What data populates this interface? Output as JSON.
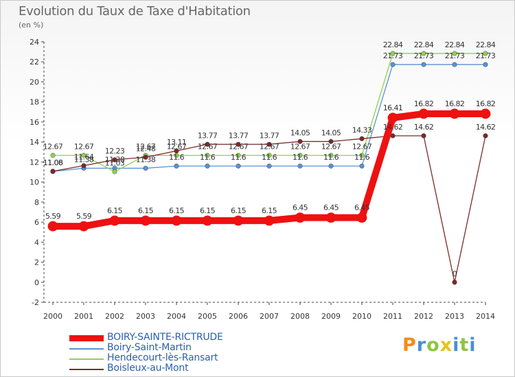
{
  "header": {
    "title": "Evolution du Taux de Taxe d'Habitation",
    "unit": "(en %)"
  },
  "brand": {
    "letters": [
      "P",
      "r",
      "o",
      "x",
      "i",
      "t",
      "i"
    ],
    "letter_colors": [
      "#f28c1a",
      "#4a8fd6",
      "#8cc63f",
      "#e8c21a",
      "#4a8fd6",
      "#8cc63f",
      "#4a8fd6"
    ]
  },
  "chart_data": {
    "type": "line",
    "title": "Evolution du Taux de Taxe d'Habitation",
    "ylabel": "(en %)",
    "xlabel": "",
    "ylim": [
      -2,
      24
    ],
    "yticks": [
      -2,
      0,
      2,
      4,
      6,
      8,
      10,
      12,
      14,
      16,
      18,
      20,
      22,
      24
    ],
    "categories": [
      "2000",
      "2001",
      "2002",
      "2003",
      "2004",
      "2005",
      "2006",
      "2007",
      "2008",
      "2009",
      "2010",
      "2011",
      "2012",
      "2013",
      "2014"
    ],
    "grid": false,
    "legend_position": "bottom-left",
    "series": [
      {
        "name": "BOIRY-SAINTE-RICTRUDE",
        "color": "#ee1111",
        "emphasis": true,
        "values": [
          5.59,
          5.59,
          6.15,
          6.15,
          6.15,
          6.15,
          6.15,
          6.15,
          6.45,
          6.45,
          6.45,
          16.41,
          16.82,
          16.82,
          16.82
        ],
        "labels": [
          "5.59",
          "5.59",
          "6.15",
          "6.15",
          "6.15",
          "6.15",
          "6.15",
          "6.15",
          "6.45",
          "6.45",
          "6.45",
          "16.41",
          "16.82",
          "16.82",
          "16.82"
        ]
      },
      {
        "name": "Boiry-Saint-Martin",
        "color": "#5b93cf",
        "emphasis": false,
        "values": [
          11.06,
          11.38,
          11.38,
          11.38,
          11.6,
          11.6,
          11.6,
          11.6,
          11.6,
          11.6,
          11.6,
          21.73,
          21.73,
          21.73,
          21.73
        ],
        "labels": [
          "11.06",
          "11.38",
          "11.38",
          "11.38",
          "11.6",
          "11.6",
          "11.6",
          "11.6",
          "11.6",
          "11.6",
          "11.6",
          "21.73",
          "21.73",
          "21.73",
          "21.73"
        ]
      },
      {
        "name": "Hendecourt-lès-Ransart",
        "color": "#8fd14f",
        "emphasis": false,
        "values": [
          12.67,
          12.67,
          11.03,
          12.67,
          12.67,
          12.67,
          12.67,
          12.67,
          12.67,
          12.67,
          12.67,
          22.84,
          22.84,
          22.84,
          22.84
        ],
        "labels": [
          "12.67",
          "12.67",
          "11.03",
          "12.67",
          "12.67",
          "12.67",
          "12.67",
          "12.67",
          "12.67",
          "12.67",
          "12.67",
          "22.84",
          "22.84",
          "22.84",
          "22.84"
        ]
      },
      {
        "name": "Boisleux-au-Mont",
        "color": "#7b2a2a",
        "emphasis": false,
        "values": [
          11.08,
          11.64,
          12.23,
          12.48,
          13.11,
          13.77,
          13.77,
          13.77,
          14.05,
          14.05,
          14.33,
          14.62,
          14.62,
          0,
          14.62
        ],
        "labels": [
          "11.08",
          "11.64",
          "12.23",
          "12.48",
          "13.11",
          "13.77",
          "13.77",
          "13.77",
          "14.05",
          "14.05",
          "14.33",
          "14.62",
          "14.62",
          "0",
          "14.62"
        ]
      }
    ]
  }
}
